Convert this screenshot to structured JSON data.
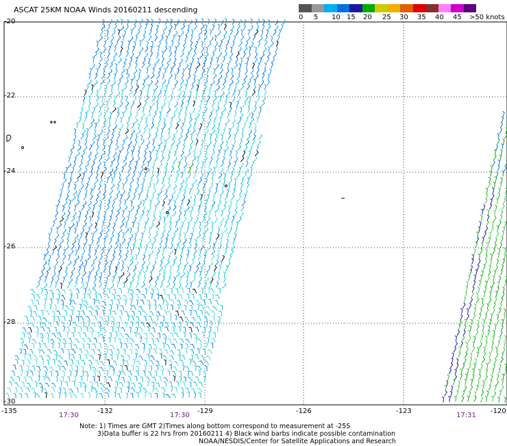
{
  "title": "ASCAT 25KM NOAA Winds 20160211 descending",
  "legend": {
    "colors": [
      "#555555",
      "#999999",
      "#00b0f0",
      "#0070e0",
      "#1a1aa0",
      "#00aa00",
      "#cccc00",
      "#f0b000",
      "#e06000",
      "#e00000",
      "#883030",
      "#ff80ff",
      "#cc00cc",
      "#5a0080"
    ],
    "labels": [
      "0",
      "5",
      "10",
      "15",
      "20",
      "25",
      "30",
      "35",
      "40",
      "45",
      ">50 knots"
    ]
  },
  "lat_labels": [
    "-20",
    "-22",
    "-24",
    "-26",
    "-28",
    "-30"
  ],
  "lon_labels": [
    "-135",
    "-132",
    "-129",
    "-126",
    "-123",
    "-120"
  ],
  "time_labels": [
    "17:30",
    "17:30",
    "17:31"
  ],
  "notes": {
    "line1": "Note: 1) Times are GMT 2)Times along bottom correspond to measurement at -25S",
    "line2": "3)Data buffer is 22 hrs from 20160211 4) Black wind barbs indicate possible contamination",
    "line3": "NOAA/NESDIS/Center for Satellite Applications and Research"
  }
}
